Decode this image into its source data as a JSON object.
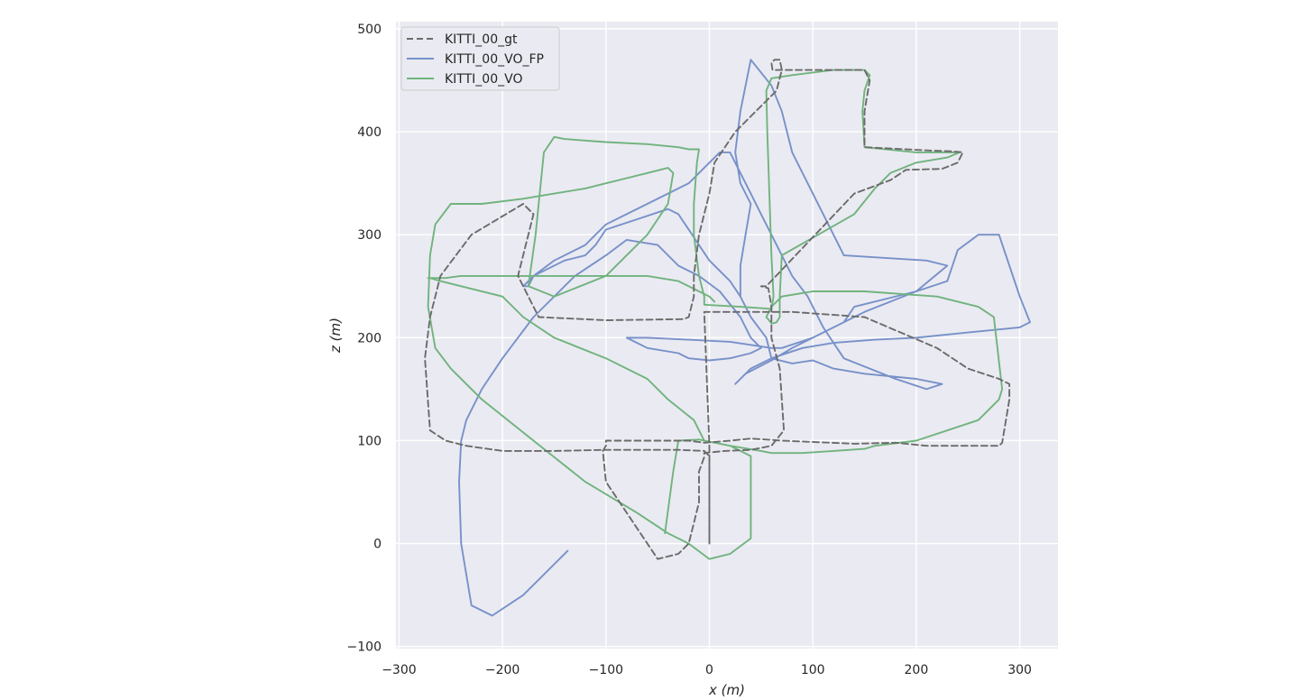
{
  "chart_data": {
    "type": "line",
    "title": "",
    "xlabel": "x (m)",
    "ylabel": "z (m)",
    "xlim": [
      -303,
      337
    ],
    "ylim": [
      -102,
      507
    ],
    "xticks": [
      -300,
      -200,
      -100,
      0,
      100,
      200,
      300
    ],
    "yticks": [
      -100,
      0,
      100,
      200,
      300,
      400,
      500
    ],
    "xtick_labels": [
      "−300",
      "−200",
      "−100",
      "0",
      "100",
      "200",
      "300"
    ],
    "ytick_labels": [
      "−100",
      "0",
      "100",
      "200",
      "300",
      "400",
      "500"
    ],
    "grid": true,
    "legend_position": "top-left",
    "background": "#eaeaf2",
    "series": [
      {
        "name": "KITTI_00_gt",
        "color": "#6b6b6b",
        "style": "dashed",
        "x": [
          0,
          0,
          -5,
          -30,
          -100,
          -150,
          -200,
          -235,
          -255,
          -270,
          -275,
          -270,
          -265,
          -260,
          -230,
          -180,
          -170,
          -185,
          -165,
          -100,
          -25,
          -20,
          -15,
          -15,
          -10,
          0,
          5,
          25,
          65,
          70,
          68,
          65,
          63,
          60,
          61,
          70,
          125,
          150,
          155,
          150,
          150,
          210,
          235,
          245,
          240,
          225,
          190,
          175,
          140,
          55,
          50,
          57,
          60,
          60,
          68,
          70,
          72,
          60,
          40,
          15,
          -5,
          -5,
          -10,
          -10,
          -20,
          -30,
          -50,
          -100,
          -103,
          -100,
          -100,
          -50,
          -20,
          -5,
          20,
          40,
          70,
          140,
          180,
          210,
          260,
          280,
          283,
          285,
          290,
          290,
          280,
          250,
          220,
          150,
          80,
          60,
          20,
          -5,
          0,
          0
        ],
        "y": [
          0,
          85,
          90,
          91,
          91,
          90,
          90,
          95,
          100,
          110,
          180,
          220,
          240,
          260,
          300,
          330,
          320,
          260,
          220,
          217,
          218,
          220,
          240,
          260,
          300,
          340,
          370,
          400,
          440,
          460,
          470,
          470,
          470,
          467,
          460,
          460,
          460,
          460,
          450,
          420,
          385,
          382,
          381,
          380,
          370,
          364,
          363,
          353,
          340,
          250,
          250,
          248,
          230,
          200,
          170,
          140,
          110,
          95,
          91,
          90,
          88,
          84,
          70,
          40,
          0,
          -10,
          -15,
          60,
          90,
          95,
          100,
          100,
          100,
          98,
          100,
          102,
          100,
          97,
          98,
          95,
          95,
          95,
          98,
          110,
          140,
          155,
          160,
          170,
          190,
          220,
          225,
          225,
          225,
          225,
          95,
          0
        ]
      },
      {
        "name": "KITTI_00_VO_FP",
        "color": "#7791c9",
        "style": "solid",
        "x": [
          -137,
          -180,
          -210,
          -230,
          -240,
          -242,
          -240,
          -235,
          -220,
          -200,
          -170,
          -130,
          -100,
          -80,
          -50,
          -30,
          -10,
          10,
          30,
          40,
          50,
          40,
          20,
          0,
          -20,
          -30,
          -60,
          -80,
          -60,
          -20,
          20,
          60,
          70,
          100,
          130,
          140,
          200,
          230,
          240,
          260,
          280,
          300,
          310,
          300,
          250,
          200,
          160,
          120,
          90,
          60,
          40,
          30,
          25,
          35,
          60,
          80,
          100,
          150,
          200,
          230,
          210,
          130,
          120,
          100,
          80,
          70,
          60,
          40,
          30,
          25,
          30,
          40,
          35,
          30,
          30,
          40,
          55,
          60,
          80,
          100,
          120,
          150,
          200,
          225,
          210,
          180,
          130,
          110,
          95,
          80,
          70,
          60,
          50,
          40,
          30,
          20,
          10,
          0,
          -10,
          -20,
          -40,
          -60,
          -80,
          -100,
          -110,
          -120,
          -150,
          -170,
          -175,
          -180,
          -170,
          -140,
          -120,
          -110,
          -100,
          -70,
          -40,
          -30,
          -20,
          -10,
          0,
          20,
          30
        ],
        "y": [
          -7,
          -50,
          -70,
          -60,
          0,
          60,
          100,
          120,
          150,
          180,
          220,
          260,
          280,
          295,
          290,
          270,
          260,
          245,
          220,
          200,
          190,
          185,
          180,
          178,
          180,
          185,
          190,
          200,
          200,
          198,
          196,
          190,
          190,
          200,
          215,
          230,
          245,
          255,
          285,
          300,
          300,
          240,
          215,
          210,
          205,
          200,
          198,
          195,
          190,
          180,
          170,
          160,
          155,
          165,
          178,
          190,
          200,
          225,
          245,
          270,
          275,
          280,
          300,
          340,
          380,
          420,
          445,
          470,
          420,
          380,
          350,
          330,
          300,
          270,
          240,
          220,
          200,
          180,
          175,
          178,
          170,
          165,
          160,
          155,
          150,
          160,
          180,
          210,
          240,
          260,
          280,
          300,
          320,
          340,
          360,
          380,
          380,
          370,
          360,
          350,
          340,
          330,
          320,
          310,
          300,
          290,
          275,
          260,
          250,
          250,
          260,
          275,
          280,
          290,
          305,
          315,
          325,
          320,
          305,
          290,
          275,
          255,
          240
        ]
      },
      {
        "name": "KITTI_00_VO",
        "color": "#70b37d",
        "style": "solid",
        "x": [
          -43,
          -35,
          -30,
          -10,
          20,
          40,
          40,
          20,
          0,
          -20,
          -40,
          -70,
          -120,
          -170,
          -220,
          -250,
          -265,
          -272,
          -270,
          -265,
          -250,
          -220,
          -180,
          -150,
          -120,
          -100,
          -80,
          -60,
          -40,
          -35,
          -40,
          -60,
          -100,
          -150,
          -175,
          -168,
          -160,
          -150,
          -140,
          -100,
          -60,
          -30,
          -20,
          -10,
          -12,
          -15,
          -15,
          -10,
          -5,
          -5,
          30,
          60,
          62,
          60,
          58,
          56,
          55,
          60,
          80,
          120,
          150,
          155,
          150,
          148,
          150,
          200,
          240,
          242,
          230,
          200,
          175,
          160,
          140,
          70,
          68,
          68,
          65,
          62,
          60,
          55,
          60,
          70,
          100,
          150,
          220,
          260,
          275,
          283,
          280,
          260,
          200,
          160,
          150,
          120,
          90,
          60,
          50,
          20,
          -5,
          -10,
          -15,
          -40,
          -60,
          -100,
          -150,
          -180,
          -200,
          -240,
          -260,
          -270,
          -272,
          -268,
          -255,
          -240,
          -200,
          -160,
          -110,
          -60,
          -30,
          -20,
          -10,
          0,
          5
        ],
        "y": [
          10,
          70,
          100,
          101,
          95,
          85,
          5,
          -10,
          -15,
          0,
          10,
          30,
          60,
          100,
          140,
          170,
          190,
          230,
          280,
          310,
          330,
          330,
          335,
          340,
          345,
          350,
          355,
          360,
          365,
          360,
          330,
          300,
          260,
          240,
          250,
          300,
          380,
          395,
          393,
          390,
          388,
          385,
          383,
          383,
          370,
          330,
          300,
          260,
          240,
          232,
          230,
          228,
          240,
          280,
          340,
          400,
          440,
          452,
          455,
          460,
          460,
          455,
          440,
          420,
          385,
          380,
          380,
          380,
          375,
          370,
          360,
          345,
          320,
          280,
          240,
          220,
          215,
          214,
          214,
          220,
          230,
          240,
          245,
          245,
          240,
          230,
          220,
          150,
          140,
          120,
          100,
          95,
          92,
          90,
          88,
          88,
          90,
          95,
          100,
          110,
          120,
          140,
          160,
          180,
          200,
          220,
          240,
          250,
          255,
          258,
          258,
          258,
          258,
          260,
          260,
          260,
          260,
          260,
          255,
          250,
          245,
          240,
          235
        ]
      }
    ]
  }
}
